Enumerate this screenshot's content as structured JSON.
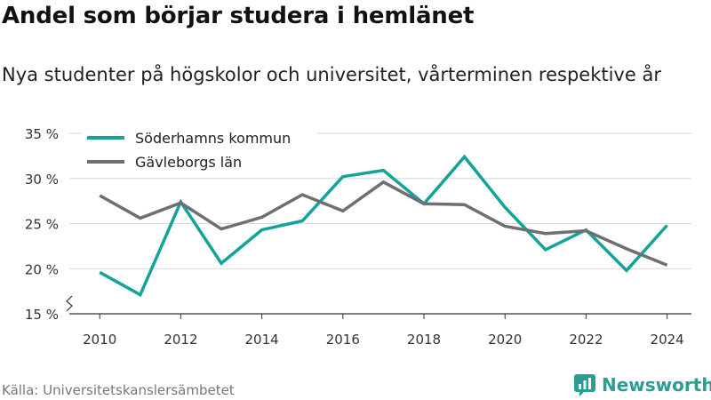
{
  "title": "Andel som börjar studera i hemlänet",
  "subtitle": "Nya studenter på högskolor och universitet, vårterminen respektive år",
  "source": "Källa: Universitetskanslersämbetet",
  "brand": {
    "name": "Newsworthy",
    "icon": "newsworthy-logo-icon",
    "color": "#2a9d94"
  },
  "chart_data": {
    "type": "line",
    "x": [
      2010,
      2011,
      2012,
      2013,
      2014,
      2015,
      2016,
      2017,
      2018,
      2019,
      2020,
      2021,
      2022,
      2023,
      2024
    ],
    "x_ticks": [
      2010,
      2012,
      2014,
      2016,
      2018,
      2020,
      2022,
      2024
    ],
    "x_tick_labels": [
      "2010",
      "2012",
      "2014",
      "2016",
      "2018",
      "2020",
      "2022",
      "2024"
    ],
    "xlim": [
      2009.25,
      2024.6
    ],
    "ylim": [
      15,
      35
    ],
    "y_ticks": [
      15,
      20,
      25,
      30,
      35
    ],
    "y_tick_labels": [
      "15 %",
      "20 %",
      "25 %",
      "30 %",
      "35 %"
    ],
    "y_axis_break": true,
    "grid": true,
    "legend_position": "top-left",
    "series": [
      {
        "name": "Söderhamns kommun",
        "color": "#14a39a",
        "values": [
          19.6,
          17.1,
          27.4,
          20.6,
          24.3,
          25.3,
          30.2,
          30.9,
          27.2,
          32.4,
          26.8,
          22.1,
          24.3,
          19.8,
          24.8
        ]
      },
      {
        "name": "Gävleborgs län",
        "color": "#6e6e73",
        "values": [
          28.1,
          25.6,
          27.3,
          24.4,
          25.7,
          28.2,
          26.4,
          29.6,
          27.2,
          27.1,
          24.7,
          23.9,
          24.2,
          22.2,
          20.4
        ]
      }
    ]
  }
}
